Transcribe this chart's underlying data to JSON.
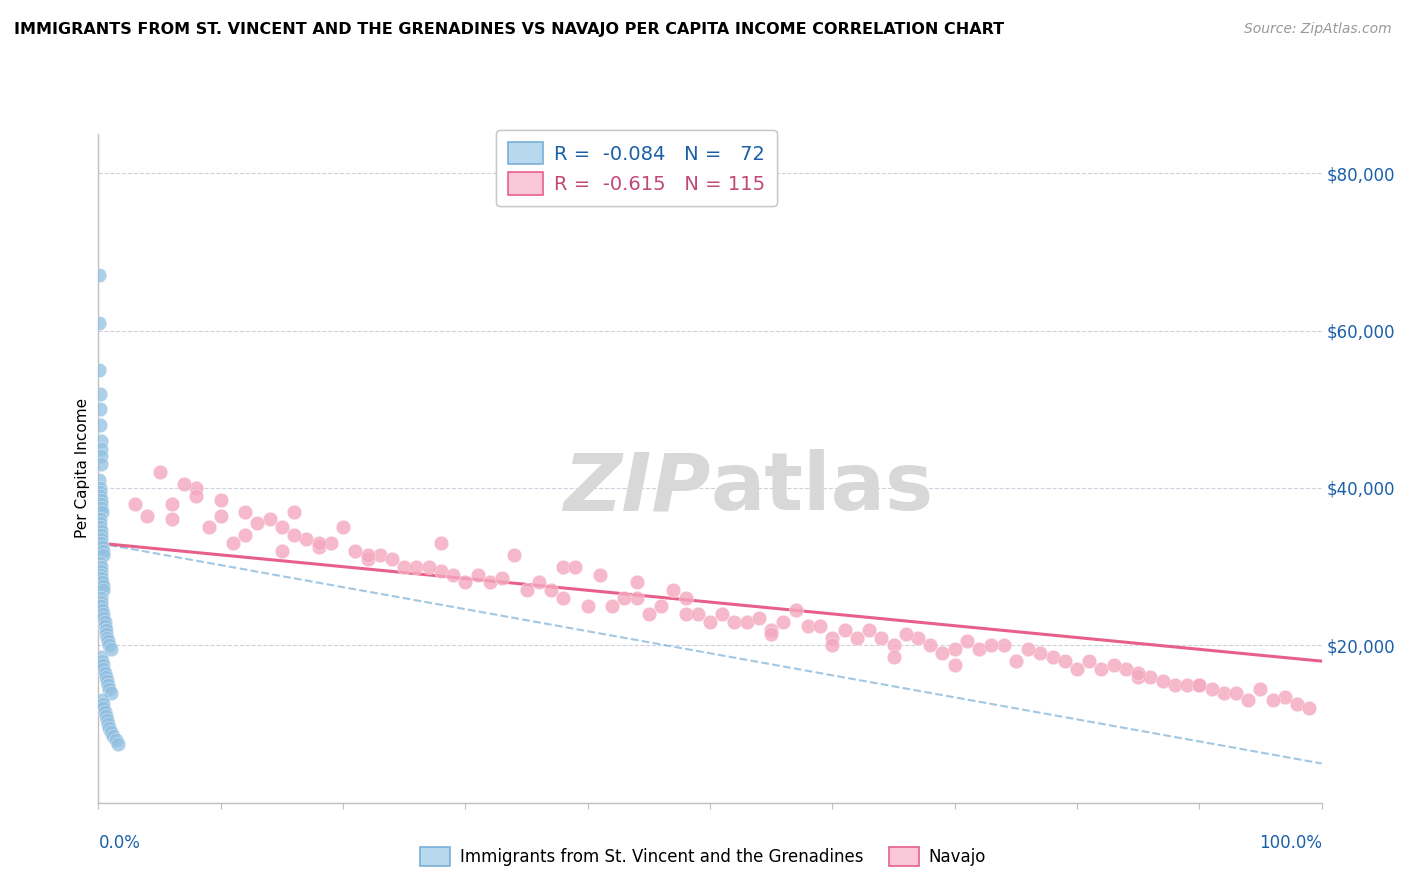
{
  "title": "IMMIGRANTS FROM ST. VINCENT AND THE GRENADINES VS NAVAJO PER CAPITA INCOME CORRELATION CHART",
  "source": "Source: ZipAtlas.com",
  "ylabel": "Per Capita Income",
  "legend1_R": "-0.084",
  "legend1_N": "72",
  "legend2_R": "-0.615",
  "legend2_N": "115",
  "blue_scatter_color": "#92c0e0",
  "pink_scatter_color": "#f4a8c0",
  "blue_line_color": "#7ab0d8",
  "pink_line_color": "#e8608a",
  "blue_legend_face": "#b8d8f0",
  "blue_legend_edge": "#7ab0d8",
  "pink_legend_face": "#f8c8d8",
  "pink_legend_edge": "#e8608a",
  "legend_text_blue": "#1a5fa8",
  "legend_text_pink": "#c04878",
  "tick_color": "#1a5fa8",
  "watermark_color": "#d8d8d8",
  "grid_color": "#d0d0e0",
  "spine_color": "#c0c0c0",
  "y_ticks": [
    0,
    20000,
    40000,
    60000,
    80000
  ],
  "xlim": [
    0,
    100
  ],
  "ylim": [
    0,
    85000
  ],
  "figsize": [
    14.06,
    8.92
  ],
  "dpi": 100,
  "blue_x": [
    0.05,
    0.05,
    0.08,
    0.1,
    0.12,
    0.15,
    0.18,
    0.2,
    0.22,
    0.25,
    0.08,
    0.1,
    0.12,
    0.15,
    0.18,
    0.2,
    0.25,
    0.3,
    0.1,
    0.12,
    0.15,
    0.18,
    0.2,
    0.22,
    0.25,
    0.3,
    0.35,
    0.4,
    0.15,
    0.18,
    0.2,
    0.22,
    0.25,
    0.3,
    0.35,
    0.4,
    0.2,
    0.22,
    0.25,
    0.3,
    0.35,
    0.4,
    0.5,
    0.55,
    0.6,
    0.65,
    0.7,
    0.8,
    0.9,
    1.0,
    0.25,
    0.3,
    0.35,
    0.4,
    0.5,
    0.6,
    0.7,
    0.8,
    0.9,
    1.0,
    0.3,
    0.35,
    0.4,
    0.5,
    0.6,
    0.7,
    0.8,
    0.9,
    1.0,
    1.2,
    1.4,
    1.6
  ],
  "blue_y": [
    67000,
    61000,
    55000,
    52000,
    50000,
    48000,
    46000,
    45000,
    44000,
    43000,
    41000,
    40000,
    39500,
    39000,
    38500,
    38000,
    37500,
    37000,
    36000,
    35500,
    35000,
    34500,
    34000,
    33500,
    33000,
    32500,
    32000,
    31500,
    30500,
    30000,
    29500,
    29000,
    28500,
    28000,
    27500,
    27000,
    26000,
    25500,
    25000,
    24500,
    24000,
    23500,
    23000,
    22500,
    22000,
    21500,
    21000,
    20500,
    20000,
    19500,
    18500,
    18000,
    17500,
    17000,
    16500,
    16000,
    15500,
    15000,
    14500,
    14000,
    13000,
    12500,
    12000,
    11500,
    11000,
    10500,
    10000,
    9500,
    9000,
    8500,
    8000,
    7500
  ],
  "pink_x": [
    3,
    6,
    8,
    5,
    10,
    4,
    7,
    12,
    9,
    15,
    20,
    6,
    11,
    18,
    14,
    25,
    8,
    13,
    22,
    17,
    30,
    10,
    16,
    28,
    23,
    35,
    12,
    19,
    32,
    26,
    40,
    15,
    21,
    38,
    29,
    45,
    18,
    24,
    42,
    33,
    50,
    22,
    36,
    48,
    55,
    27,
    44,
    60,
    31,
    52,
    65,
    37,
    58,
    70,
    43,
    62,
    75,
    46,
    68,
    80,
    49,
    72,
    85,
    56,
    78,
    90,
    63,
    82,
    95,
    67,
    86,
    92,
    88,
    97,
    93,
    74,
    81,
    87,
    94,
    98,
    84,
    91,
    96,
    99,
    77,
    89,
    57,
    47,
    38,
    28,
    16,
    53,
    64,
    73,
    61,
    41,
    34,
    69,
    79,
    71,
    83,
    85,
    76,
    66,
    51,
    59,
    54,
    44,
    39,
    48,
    55,
    60,
    65,
    70,
    90
  ],
  "pink_y": [
    38000,
    36000,
    40000,
    42000,
    38500,
    36500,
    40500,
    34000,
    35000,
    32000,
    35000,
    38000,
    33000,
    32500,
    36000,
    30000,
    39000,
    35500,
    31000,
    33500,
    28000,
    36500,
    34000,
    29500,
    31500,
    27000,
    37000,
    33000,
    28000,
    30000,
    25000,
    35000,
    32000,
    26000,
    29000,
    24000,
    33000,
    31000,
    25000,
    28500,
    23000,
    31500,
    28000,
    24000,
    22000,
    30000,
    26000,
    21000,
    29000,
    23000,
    20000,
    27000,
    22500,
    19500,
    26000,
    21000,
    18000,
    25000,
    20000,
    17000,
    24000,
    19500,
    16000,
    23000,
    18500,
    15000,
    22000,
    17000,
    14500,
    21000,
    16000,
    14000,
    15000,
    13500,
    14000,
    20000,
    18000,
    15500,
    13000,
    12500,
    17000,
    14500,
    13000,
    12000,
    19000,
    15000,
    24500,
    27000,
    30000,
    33000,
    37000,
    23000,
    21000,
    20000,
    22000,
    29000,
    31500,
    19000,
    18000,
    20500,
    17500,
    16500,
    19500,
    21500,
    24000,
    22500,
    23500,
    28000,
    30000,
    26000,
    21500,
    20000,
    18500,
    17500,
    15000
  ]
}
